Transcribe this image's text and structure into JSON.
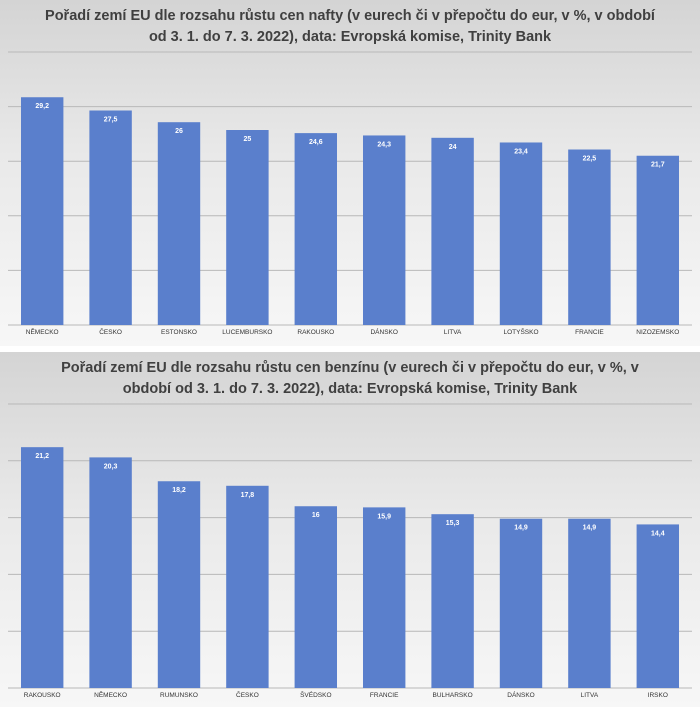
{
  "chart_data": [
    {
      "type": "bar",
      "title_lines": [
        "Pořadí zemí EU dle rozsahu růstu cen nafty (v eurech či v přepočtu do eur, v %, v období",
        "od 3. 1. do 7. 3. 2022), data: Evropská komise, Trinity Bank"
      ],
      "categories": [
        "NĚMECKO",
        "ČESKO",
        "ESTONSKO",
        "LUCEMBURSKO",
        "RAKOUSKO",
        "DÁNSKO",
        "LITVA",
        "LOTYŠSKO",
        "FRANCIE",
        "NIZOZEMSKO"
      ],
      "values": [
        29.2,
        27.5,
        26,
        25,
        24.6,
        24.3,
        24,
        23.4,
        22.5,
        21.7
      ],
      "value_labels": [
        "29,2",
        "27,5",
        "26",
        "25",
        "24,6",
        "24,3",
        "24",
        "23,4",
        "22,5",
        "21,7"
      ],
      "ylim": [
        0,
        35
      ],
      "grid": true,
      "bar_color": "#5a7fcc"
    },
    {
      "type": "bar",
      "title_lines": [
        "Pořadí zemí EU dle rozsahu růstu cen benzínu (v eurech či v přepočtu do eur, v %, v",
        "období od 3. 1. do 7. 3. 2022),  data: Evropská komise, Trinity Bank"
      ],
      "categories": [
        "RAKOUSKO",
        "NĚMECKO",
        "RUMUNSKO",
        "ČESKO",
        "ŠVÉDSKO",
        "FRANCIE",
        "BULHARSKO",
        "DÁNSKO",
        "LITVA",
        "IRSKO"
      ],
      "values": [
        21.2,
        20.3,
        18.2,
        17.8,
        16,
        15.9,
        15.3,
        14.9,
        14.9,
        14.4
      ],
      "value_labels": [
        "21,2",
        "20,3",
        "18,2",
        "17,8",
        "16",
        "15,9",
        "15,3",
        "14,9",
        "14,9",
        "14,4"
      ],
      "ylim": [
        0,
        25
      ],
      "grid": true,
      "bar_color": "#5a7fcc"
    }
  ]
}
